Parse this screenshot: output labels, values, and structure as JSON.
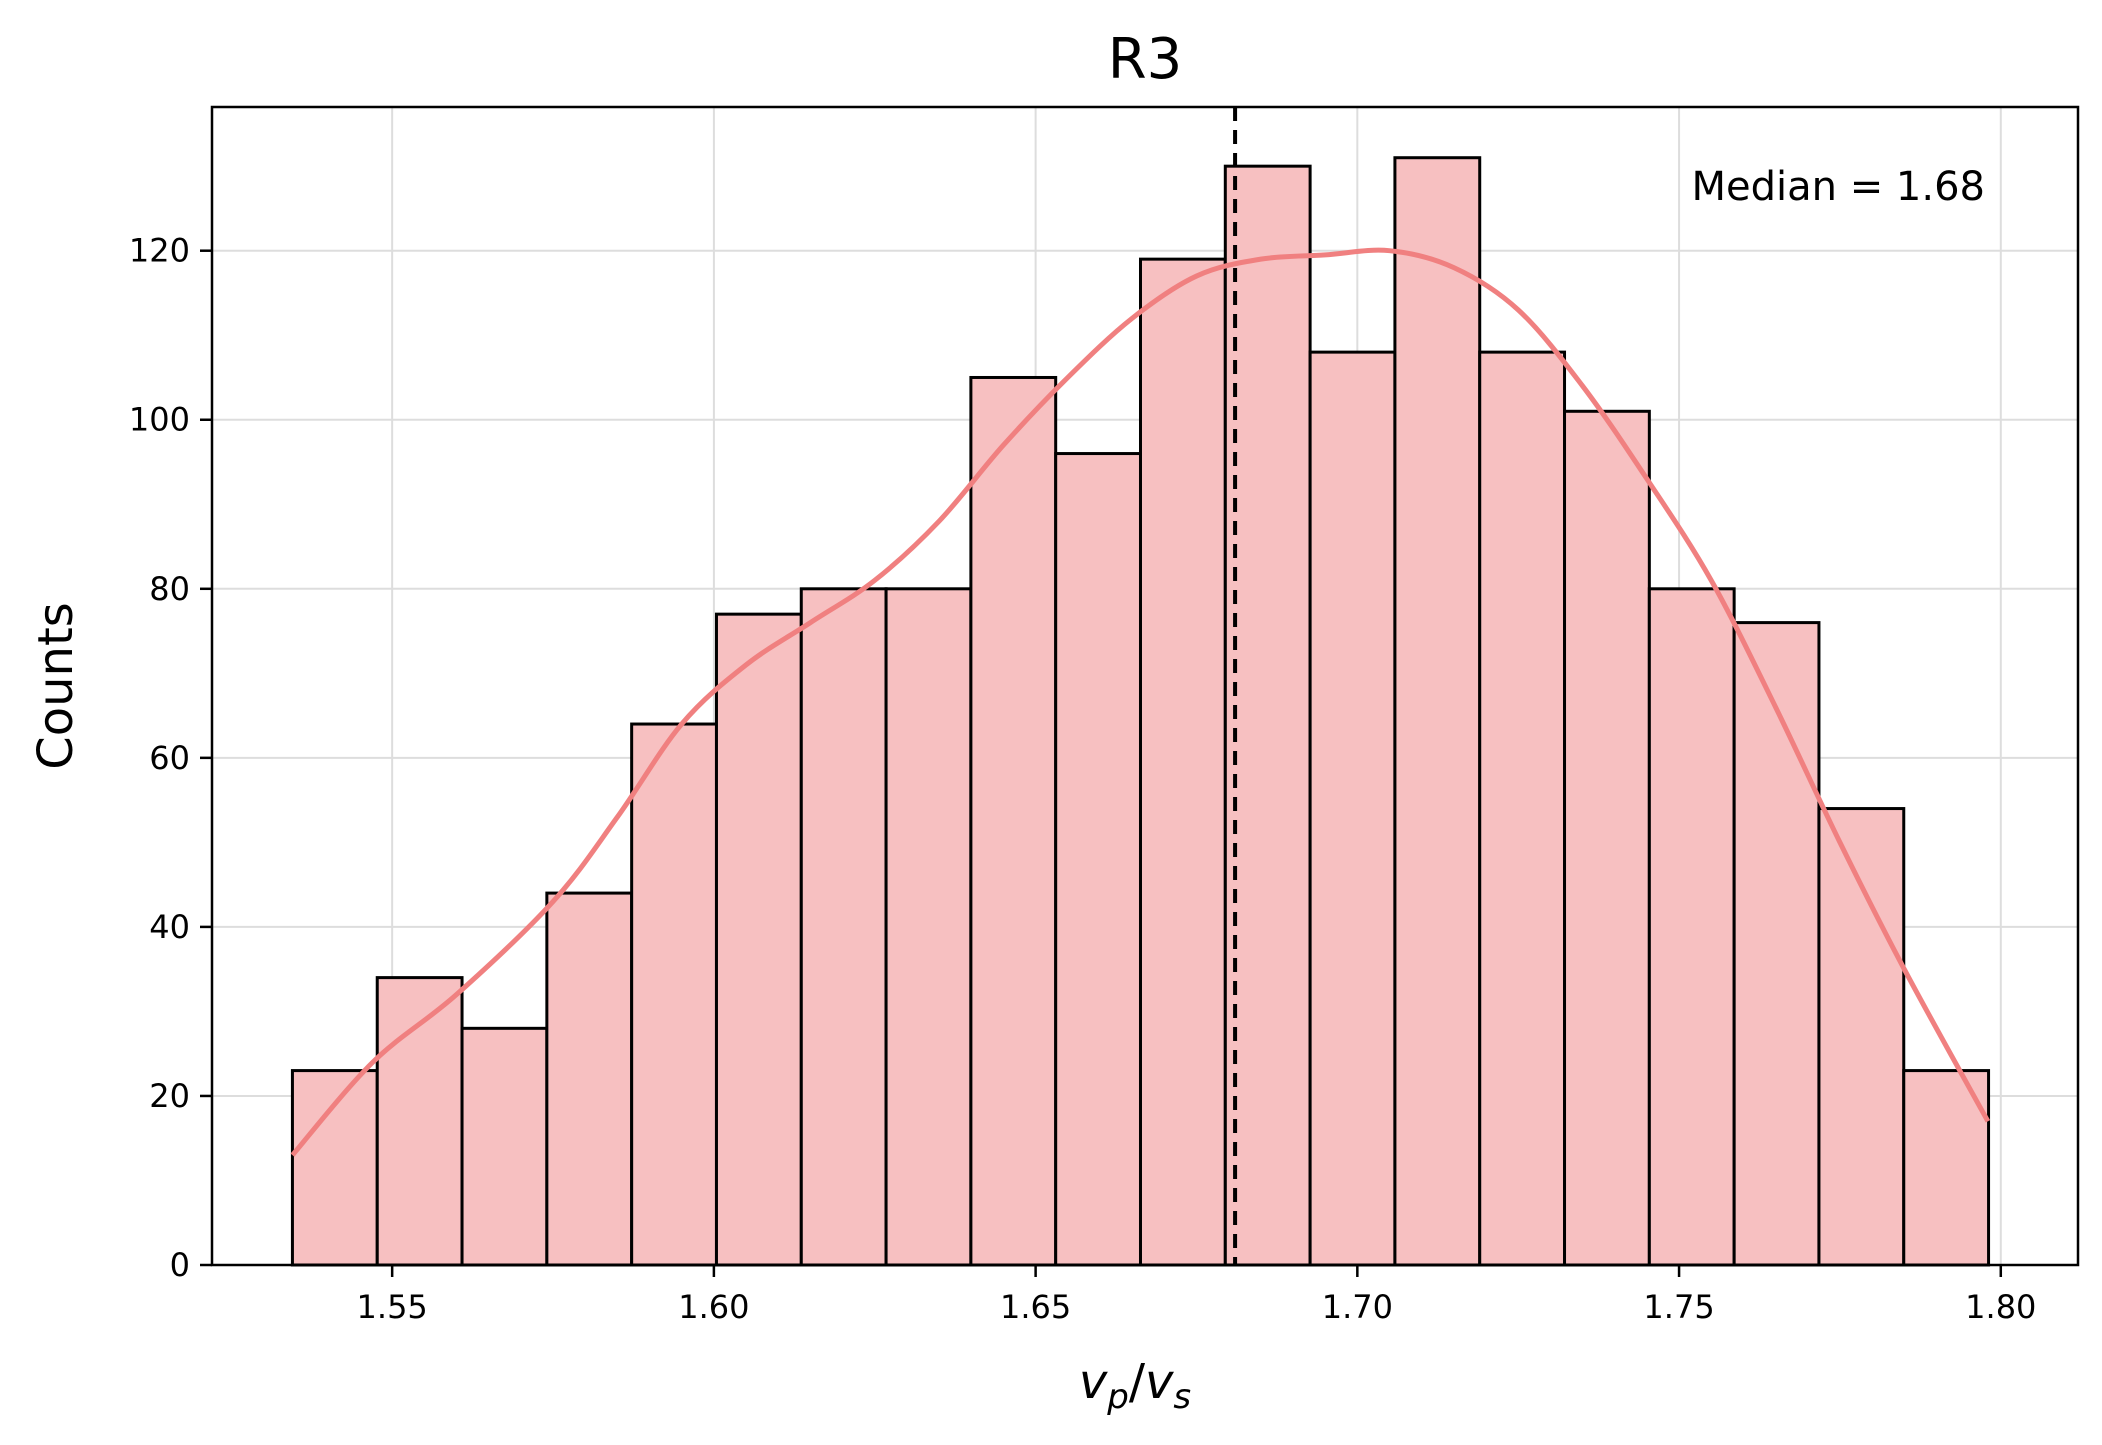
{
  "chart_data": {
    "type": "bar",
    "title": "R3",
    "xlabel": {
      "v": "v",
      "p": "p",
      "slash": "/",
      "v2": "v",
      "s": "s"
    },
    "ylabel": "Counts",
    "xlim": [
      1.522,
      1.812
    ],
    "ylim": [
      0,
      137
    ],
    "x_ticks": [
      1.55,
      1.6,
      1.65,
      1.7,
      1.75,
      1.8
    ],
    "x_tick_labels": [
      "1.55",
      "1.60",
      "1.65",
      "1.70",
      "1.75",
      "1.80"
    ],
    "y_ticks": [
      0,
      20,
      40,
      60,
      80,
      100,
      120
    ],
    "y_tick_labels": [
      "0",
      "20",
      "40",
      "60",
      "80",
      "100",
      "120"
    ],
    "bin_start": 1.5345,
    "bin_width": 0.01318,
    "values": [
      23,
      34,
      28,
      44,
      64,
      77,
      80,
      80,
      105,
      96,
      119,
      130,
      108,
      131,
      108,
      101,
      80,
      76,
      54,
      23
    ],
    "kde": {
      "x": [
        1.5345,
        1.547,
        1.56,
        1.575,
        1.585,
        1.595,
        1.605,
        1.615,
        1.625,
        1.635,
        1.645,
        1.655,
        1.665,
        1.675,
        1.685,
        1.695,
        1.705,
        1.715,
        1.725,
        1.735,
        1.745,
        1.755,
        1.765,
        1.775,
        1.785,
        1.798
      ],
      "y": [
        13,
        24,
        32,
        43,
        53,
        64,
        71,
        76,
        81,
        88,
        97,
        105,
        112,
        117,
        119,
        119.5,
        120,
        118,
        113,
        104,
        93,
        81,
        66,
        50,
        35,
        17
      ]
    },
    "median": 1.681,
    "median_label": "Median = 1.68",
    "grid": true,
    "bar_fill": "#f7c0c1",
    "bar_edge": "#000000",
    "kde_color": "#f08080"
  }
}
